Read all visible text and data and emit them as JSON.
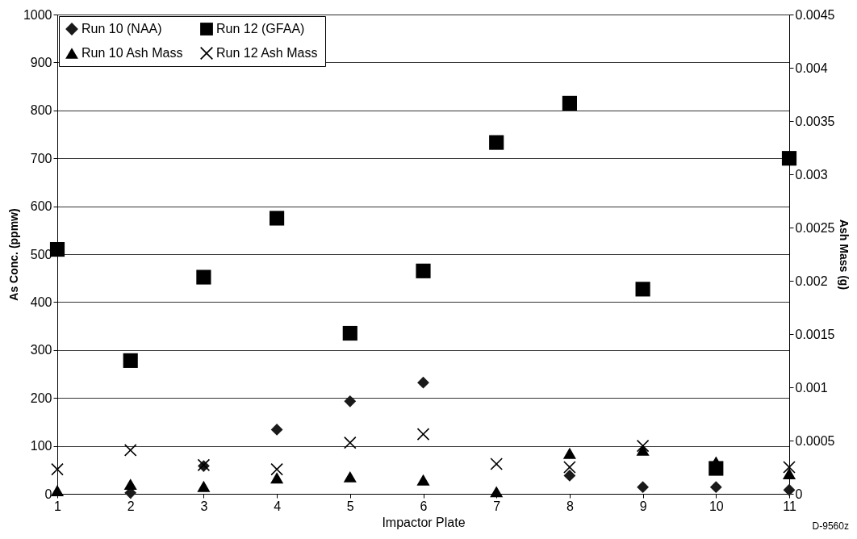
{
  "chart_data": {
    "type": "scatter",
    "xlabel": "Impactor Plate",
    "ylabel": "As Conc. (ppmw)",
    "y2label": "Ash Mass (g)",
    "x": [
      1,
      2,
      3,
      4,
      5,
      6,
      7,
      8,
      9,
      10,
      11
    ],
    "xlim": [
      1,
      11
    ],
    "xticks": [
      1,
      2,
      3,
      4,
      5,
      6,
      7,
      8,
      9,
      10,
      11
    ],
    "ylim": [
      0,
      1000
    ],
    "yticks": [
      0,
      100,
      200,
      300,
      400,
      500,
      600,
      700,
      800,
      900,
      1000
    ],
    "y2lim": [
      0,
      0.0045
    ],
    "y2ticks": [
      0,
      0.0005,
      0.001,
      0.0015,
      0.002,
      0.0025,
      0.003,
      0.0035,
      0.004,
      0.0045
    ],
    "grid": "y",
    "legend": "top left",
    "annotations": [
      "D-9560z"
    ],
    "series": [
      {
        "name": "Run 10 (NAA)",
        "color": "#1a1a1a",
        "marker": "diamond",
        "values": [
          null,
          2,
          58,
          134,
          193,
          232,
          null,
          38,
          14,
          14,
          8
        ]
      },
      {
        "name": "Run 12 (GFAA)",
        "color": "#000000",
        "marker": "square",
        "values": [
          510,
          278,
          452,
          575,
          335,
          465,
          733,
          815,
          427,
          53,
          700
        ]
      },
      {
        "name": "Run 10 Ash Mass",
        "color": "#000000",
        "marker": "triangle",
        "axis": "y2",
        "values": [
          3e-05,
          9e-05,
          7e-05,
          0.00015,
          0.00016,
          0.00013,
          2e-05,
          0.00038,
          0.00041,
          0.0003,
          0.00019
        ]
      },
      {
        "name": "Run 12 Ash Mass",
        "color": "#000000",
        "marker": "cross",
        "axis": "y2",
        "values": [
          0.00023,
          0.00041,
          0.00027,
          0.00023,
          0.00048,
          0.00056,
          0.00028,
          0.00025,
          0.00045,
          null,
          0.00025
        ]
      }
    ]
  }
}
